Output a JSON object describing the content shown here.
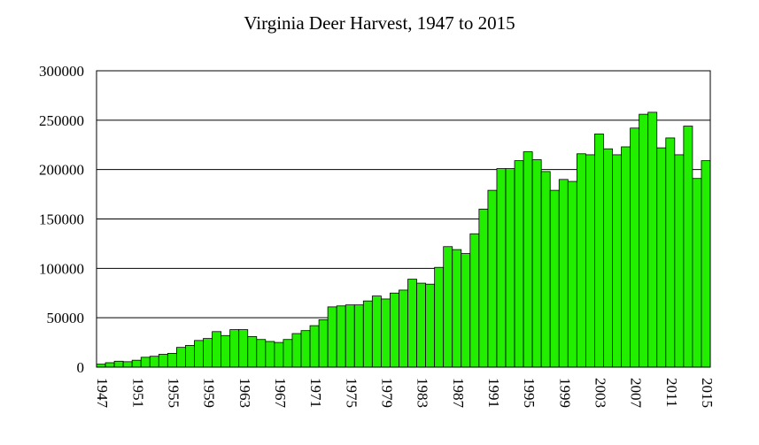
{
  "chart_data": {
    "type": "bar",
    "title": "Virginia Deer Harvest, 1947 to 2015",
    "xlabel": "",
    "ylabel": "",
    "ylim": [
      0,
      300000
    ],
    "yticks": [
      "0",
      "50000",
      "100000",
      "150000",
      "200000",
      "250000",
      "300000"
    ],
    "xticks": [
      "1947",
      "1951",
      "1955",
      "1959",
      "1963",
      "1967",
      "1971",
      "1975",
      "1979",
      "1983",
      "1987",
      "1991",
      "1995",
      "1999",
      "2003",
      "2007",
      "2011",
      "2015"
    ],
    "grid": "horizontal",
    "bar_color": "#22ee00",
    "categories": [
      1947,
      1948,
      1949,
      1950,
      1951,
      1952,
      1953,
      1954,
      1955,
      1956,
      1957,
      1958,
      1959,
      1960,
      1961,
      1962,
      1963,
      1964,
      1965,
      1966,
      1967,
      1968,
      1969,
      1970,
      1971,
      1972,
      1973,
      1974,
      1975,
      1976,
      1977,
      1978,
      1979,
      1980,
      1981,
      1982,
      1983,
      1984,
      1985,
      1986,
      1987,
      1988,
      1989,
      1990,
      1991,
      1992,
      1993,
      1994,
      1995,
      1996,
      1997,
      1998,
      1999,
      2000,
      2001,
      2002,
      2003,
      2004,
      2005,
      2006,
      2007,
      2008,
      2009,
      2010,
      2011,
      2012,
      2013,
      2014,
      2015
    ],
    "values": [
      3000,
      4500,
      6000,
      5500,
      7000,
      10000,
      11000,
      13000,
      14000,
      20000,
      22000,
      27000,
      29000,
      36000,
      32000,
      38000,
      38000,
      31000,
      28000,
      26000,
      25000,
      28000,
      34000,
      37000,
      42000,
      48000,
      61000,
      62000,
      63000,
      63000,
      67000,
      72000,
      69000,
      75000,
      78000,
      89000,
      85000,
      84000,
      101000,
      122000,
      119000,
      115000,
      135000,
      160000,
      179000,
      201000,
      201000,
      209000,
      218000,
      210000,
      198000,
      179000,
      190000,
      188000,
      216000,
      215000,
      236000,
      221000,
      215000,
      223000,
      242000,
      256000,
      258000,
      222000,
      232000,
      215000,
      244000,
      191000,
      209000
    ]
  }
}
